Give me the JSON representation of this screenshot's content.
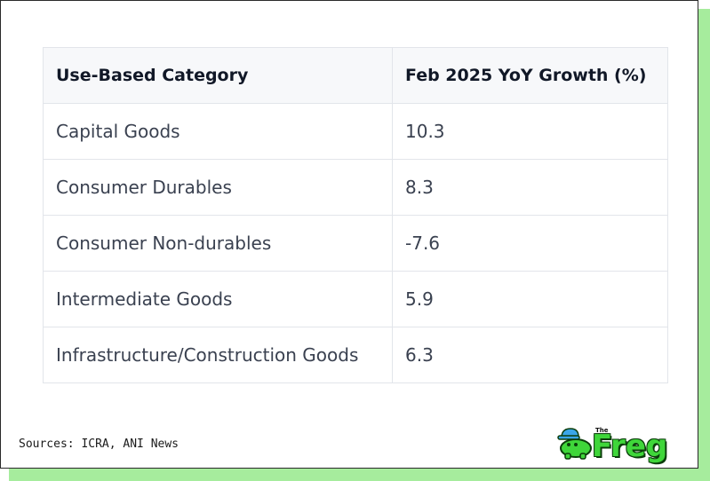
{
  "table": {
    "headers": [
      "Use-Based Category",
      "Feb 2025 YoY Growth (%)"
    ],
    "rows": [
      [
        "Capital Goods",
        "10.3"
      ],
      [
        "Consumer Durables",
        "8.3"
      ],
      [
        "Consumer Non-durables",
        "-7.6"
      ],
      [
        "Intermediate Goods",
        "5.9"
      ],
      [
        "Infrastructure/Construction Goods",
        "6.3"
      ]
    ]
  },
  "footer": {
    "sources": "Sources: ICRA, ANI News"
  },
  "logo": {
    "small_text": "The",
    "word": "Freg",
    "icon": "frog-mascot-icon"
  },
  "colors": {
    "accent_shadow": "#a6ec9d",
    "logo_green": "#3fd63a",
    "header_bg": "#f7f8fa"
  }
}
